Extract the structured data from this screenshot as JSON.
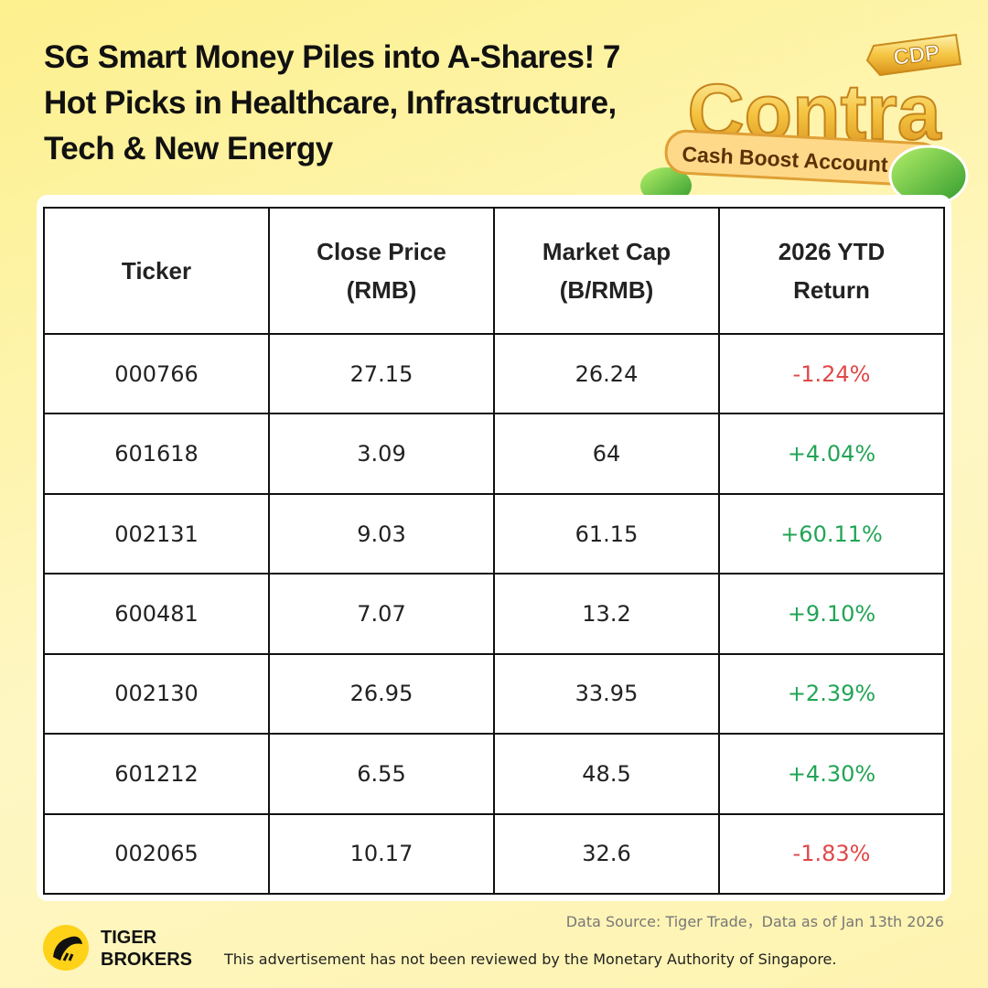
{
  "header": {
    "title_lines": [
      "SG Smart Money Piles into A-Shares!  7",
      "Hot Picks in Healthcare, Infrastructure,",
      "Tech & New Energy"
    ],
    "badge": {
      "tag": "CDP",
      "brand": "Contra",
      "ribbon": "Cash Boost Account"
    }
  },
  "table": {
    "columns": [
      "Ticker",
      "Close Price (RMB)",
      "Market Cap (B/RMB)",
      "2026 YTD Return"
    ],
    "rows": [
      [
        "000766",
        "27.15",
        "26.24",
        "-1.24%"
      ],
      [
        "601618",
        "3.09",
        "64",
        "+4.04%"
      ],
      [
        "002131",
        "9.03",
        "61.15",
        "+60.11%"
      ],
      [
        "600481",
        "7.07",
        "13.2",
        "+9.10%"
      ],
      [
        "002130",
        "26.95",
        "33.95",
        "+2.39%"
      ],
      [
        "601212",
        "6.55",
        "48.5",
        "+4.30%"
      ],
      [
        "002065",
        "10.17",
        "32.6",
        "-1.83%"
      ]
    ]
  },
  "footer": {
    "source": "Data Source: Tiger Trade，Data as of Jan 13th 2026",
    "logo_line1": "TIGER",
    "logo_line2": "BROKERS",
    "disclaimer": "This advertisement has not been reviewed by the Monetary Authority of Singapore."
  }
}
